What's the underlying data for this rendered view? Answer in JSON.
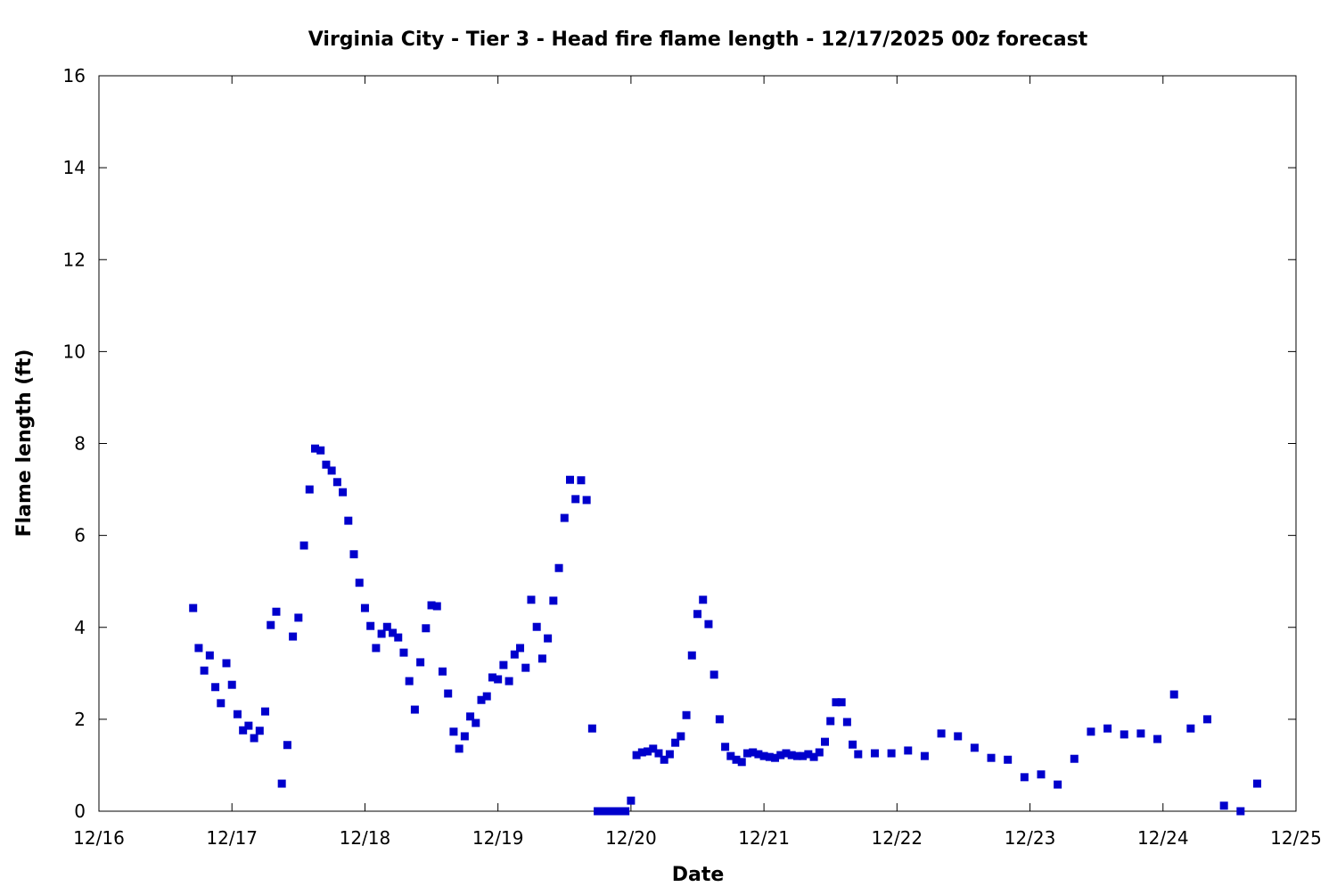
{
  "chart_data": {
    "type": "scatter",
    "title": "Virginia City - Tier 3 - Head fire flame length - 12/17/2025 00z forecast",
    "xlabel": "Date",
    "ylabel": "Flame length (ft)",
    "x_units": "hours since 12/16 00z",
    "xlim": [
      0,
      216
    ],
    "ylim": [
      0,
      16
    ],
    "grid": false,
    "legend": "none",
    "x_ticks": [
      {
        "value": 0,
        "label": "12/16"
      },
      {
        "value": 24,
        "label": "12/17"
      },
      {
        "value": 48,
        "label": "12/18"
      },
      {
        "value": 72,
        "label": "12/19"
      },
      {
        "value": 96,
        "label": "12/20"
      },
      {
        "value": 120,
        "label": "12/21"
      },
      {
        "value": 144,
        "label": "12/22"
      },
      {
        "value": 168,
        "label": "12/23"
      },
      {
        "value": 192,
        "label": "12/24"
      },
      {
        "value": 216,
        "label": "12/25"
      }
    ],
    "y_ticks": [
      {
        "value": 0,
        "label": "0"
      },
      {
        "value": 2,
        "label": "2"
      },
      {
        "value": 4,
        "label": "4"
      },
      {
        "value": 6,
        "label": "6"
      },
      {
        "value": 8,
        "label": "8"
      },
      {
        "value": 10,
        "label": "10"
      },
      {
        "value": 12,
        "label": "12"
      },
      {
        "value": 14,
        "label": "14"
      },
      {
        "value": 16,
        "label": "16"
      }
    ],
    "series": [
      {
        "name": "Flame length",
        "color": "#0000cc",
        "hourly_start": 17,
        "hourly_values": [
          4.42,
          3.55,
          3.06,
          3.39,
          2.7,
          2.35,
          3.22,
          2.75,
          2.11,
          1.76,
          1.86,
          1.59,
          1.75,
          2.17,
          4.05,
          4.34,
          0.6,
          1.44,
          3.8,
          4.21,
          5.78,
          7.0,
          7.89,
          7.85,
          7.54,
          7.41,
          7.16,
          6.94,
          6.32,
          5.59,
          4.97,
          4.42,
          4.03,
          3.55,
          3.86,
          4.01,
          3.88,
          3.78,
          3.45,
          2.83,
          2.21,
          3.24,
          3.98,
          4.48,
          4.46,
          3.04,
          2.56,
          1.73,
          1.36,
          1.63,
          2.06,
          1.92,
          2.42,
          2.5,
          2.91,
          2.87,
          3.18,
          2.83,
          3.41,
          3.55,
          3.12,
          4.6,
          4.01,
          3.32,
          3.76,
          4.58,
          5.29,
          6.38,
          7.21,
          6.79,
          7.2,
          6.77,
          1.8,
          0,
          0,
          0,
          0,
          0,
          0,
          0.23,
          1.22,
          1.28,
          1.3,
          1.36,
          1.26,
          1.12,
          1.24,
          1.49,
          1.63,
          2.09,
          3.39,
          4.29,
          4.6,
          4.07,
          2.97,
          2.0,
          1.4,
          1.2,
          1.12,
          1.07,
          1.26,
          1.28,
          1.24,
          1.2,
          1.18,
          1.16,
          1.22,
          1.26,
          1.22,
          1.2,
          1.2,
          1.24,
          1.18,
          1.28,
          1.51,
          1.96,
          2.37,
          2.37,
          1.94,
          1.45,
          1.24
        ],
        "three_hourly_start": 140,
        "three_hourly_values": [
          1.26,
          1.26,
          1.32,
          1.2,
          1.69,
          1.63,
          1.38,
          1.16,
          1.12,
          0.74,
          0.8,
          0.58,
          1.14,
          1.73,
          1.8,
          1.67,
          1.69,
          1.57,
          2.54,
          1.8,
          2.0,
          0.12,
          0,
          0.6
        ]
      }
    ]
  }
}
